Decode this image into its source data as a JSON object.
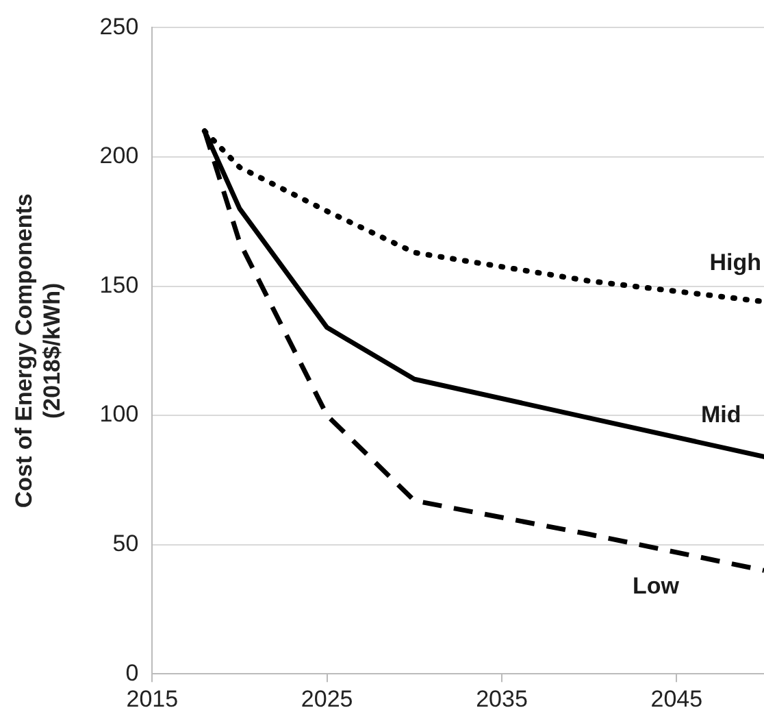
{
  "chart_data": {
    "type": "line",
    "ylabel": "Cost of Energy Components\n(2018$/kWh)",
    "xlim": [
      2015,
      2050
    ],
    "xticks": [
      2015,
      2025,
      2035,
      2045
    ],
    "ylim": [
      0,
      250
    ],
    "yticks": [
      0,
      50,
      100,
      150,
      200,
      250
    ],
    "grid": "y",
    "legend": false,
    "marker": "none",
    "series": [
      {
        "name": "High",
        "color": "#000000",
        "line_style": "dotted",
        "x": [
          2018,
          2020,
          2025,
          2030,
          2040,
          2050
        ],
        "values": [
          210,
          196,
          179,
          163,
          152,
          144
        ]
      },
      {
        "name": "Mid",
        "color": "#000000",
        "line_style": "solid",
        "x": [
          2018,
          2020,
          2025,
          2030,
          2040,
          2050
        ],
        "values": [
          210,
          180,
          134,
          114,
          99,
          84
        ]
      },
      {
        "name": "Low",
        "color": "#000000",
        "line_style": "dashed",
        "x": [
          2018,
          2020,
          2025,
          2030,
          2040,
          2050
        ],
        "values": [
          210,
          167,
          100,
          67,
          54,
          40
        ]
      }
    ]
  }
}
